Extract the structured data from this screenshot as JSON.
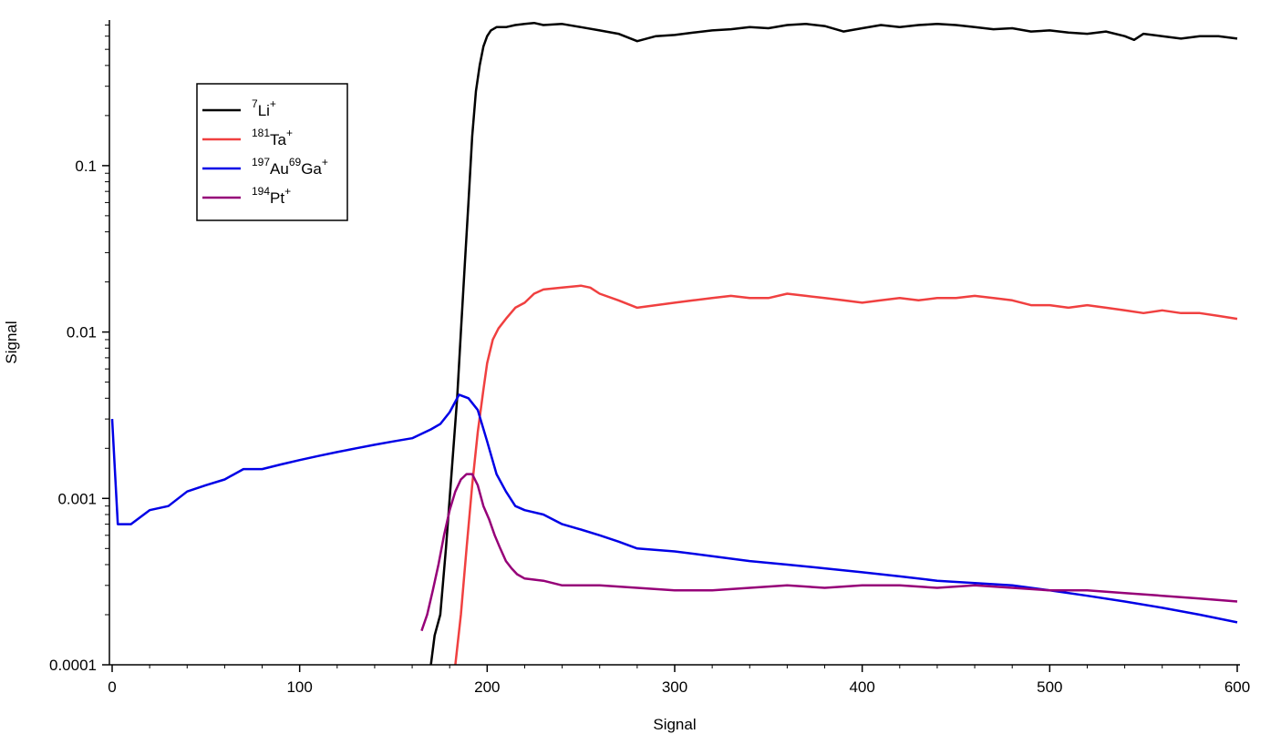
{
  "chart_data": {
    "type": "line",
    "title": "",
    "xlabel": "Signal",
    "ylabel": "Signal",
    "xlim": [
      0,
      600
    ],
    "ylim": [
      0.0001,
      0.75
    ],
    "yscale": "log",
    "grid": false,
    "legend_position": "top-left",
    "x_ticks": [
      0,
      100,
      200,
      300,
      400,
      500,
      600
    ],
    "x_tick_labels": [
      "0",
      "100",
      "200",
      "300",
      "400",
      "500",
      "600"
    ],
    "y_ticks": [
      0.0001,
      0.001,
      0.01,
      0.1
    ],
    "y_tick_labels": [
      "0.0001",
      "0.001",
      "0.01",
      "0.1"
    ],
    "series": [
      {
        "label_main": [
          "Li"
        ],
        "label_sup": [
          "7",
          "+"
        ],
        "color": "#000000",
        "x": [
          170,
          172,
          175,
          178,
          180,
          182,
          184,
          186,
          188,
          190,
          192,
          194,
          196,
          198,
          200,
          202,
          205,
          210,
          215,
          220,
          225,
          230,
          240,
          250,
          260,
          270,
          280,
          290,
          300,
          310,
          320,
          330,
          340,
          350,
          360,
          370,
          380,
          390,
          400,
          410,
          420,
          430,
          440,
          450,
          460,
          470,
          480,
          490,
          500,
          510,
          520,
          530,
          540,
          545,
          550,
          560,
          570,
          580,
          590,
          600
        ],
        "y": [
          0.0001,
          0.00015,
          0.0002,
          0.0005,
          0.001,
          0.002,
          0.004,
          0.01,
          0.025,
          0.06,
          0.15,
          0.28,
          0.4,
          0.52,
          0.6,
          0.65,
          0.68,
          0.68,
          0.7,
          0.71,
          0.72,
          0.7,
          0.71,
          0.68,
          0.65,
          0.62,
          0.56,
          0.6,
          0.61,
          0.63,
          0.65,
          0.66,
          0.68,
          0.67,
          0.7,
          0.71,
          0.69,
          0.64,
          0.67,
          0.7,
          0.68,
          0.7,
          0.71,
          0.7,
          0.68,
          0.66,
          0.67,
          0.64,
          0.65,
          0.63,
          0.62,
          0.64,
          0.6,
          0.57,
          0.62,
          0.6,
          0.58,
          0.6,
          0.6,
          0.58
        ]
      },
      {
        "label_main": [
          "Ta"
        ],
        "label_sup": [
          "181",
          "+"
        ],
        "color": "#f04040",
        "x": [
          183,
          186,
          189,
          192,
          195,
          198,
          200,
          203,
          206,
          210,
          215,
          220,
          225,
          230,
          240,
          250,
          255,
          260,
          270,
          280,
          290,
          300,
          310,
          320,
          330,
          340,
          350,
          360,
          370,
          380,
          390,
          400,
          410,
          420,
          430,
          440,
          450,
          460,
          470,
          480,
          490,
          500,
          510,
          520,
          530,
          540,
          550,
          560,
          570,
          580,
          590,
          600
        ],
        "y": [
          0.0001,
          0.0002,
          0.0005,
          0.0012,
          0.0025,
          0.0045,
          0.0065,
          0.009,
          0.0105,
          0.012,
          0.014,
          0.015,
          0.017,
          0.018,
          0.0185,
          0.019,
          0.0185,
          0.017,
          0.0155,
          0.014,
          0.0145,
          0.015,
          0.0155,
          0.016,
          0.0165,
          0.016,
          0.016,
          0.017,
          0.0165,
          0.016,
          0.0155,
          0.015,
          0.0155,
          0.016,
          0.0155,
          0.016,
          0.016,
          0.0165,
          0.016,
          0.0155,
          0.0145,
          0.0145,
          0.014,
          0.0145,
          0.014,
          0.0135,
          0.013,
          0.0135,
          0.013,
          0.013,
          0.0125,
          0.012
        ]
      },
      {
        "label_main": [
          "Au",
          "Ga"
        ],
        "label_sup": [
          "197",
          "69",
          "+"
        ],
        "color": "#0000e6",
        "x": [
          0,
          3,
          10,
          20,
          30,
          40,
          50,
          60,
          70,
          80,
          90,
          100,
          110,
          120,
          130,
          140,
          150,
          160,
          170,
          175,
          180,
          185,
          190,
          195,
          200,
          205,
          210,
          215,
          220,
          230,
          240,
          250,
          260,
          270,
          280,
          300,
          320,
          340,
          360,
          380,
          400,
          420,
          440,
          460,
          480,
          500,
          520,
          540,
          560,
          580,
          600
        ],
        "y": [
          0.003,
          0.0007,
          0.0007,
          0.00085,
          0.0009,
          0.0011,
          0.0012,
          0.0013,
          0.0015,
          0.0015,
          0.0016,
          0.0017,
          0.0018,
          0.0019,
          0.002,
          0.0021,
          0.0022,
          0.0023,
          0.0026,
          0.0028,
          0.0033,
          0.0042,
          0.004,
          0.0034,
          0.0022,
          0.0014,
          0.0011,
          0.0009,
          0.00085,
          0.0008,
          0.0007,
          0.00065,
          0.0006,
          0.00055,
          0.0005,
          0.00048,
          0.00045,
          0.00042,
          0.0004,
          0.00038,
          0.00036,
          0.00034,
          0.00032,
          0.00031,
          0.0003,
          0.00028,
          0.00026,
          0.00024,
          0.00022,
          0.0002,
          0.00018
        ]
      },
      {
        "label_main": [
          "Pt"
        ],
        "label_sup": [
          "194",
          "+"
        ],
        "color": "#960078",
        "x": [
          165,
          168,
          171,
          174,
          177,
          180,
          183,
          186,
          189,
          192,
          195,
          198,
          201,
          204,
          207,
          210,
          213,
          216,
          220,
          230,
          240,
          250,
          260,
          280,
          300,
          320,
          340,
          360,
          380,
          400,
          420,
          440,
          460,
          480,
          500,
          520,
          540,
          560,
          580,
          600
        ],
        "y": [
          0.00016,
          0.0002,
          0.00028,
          0.0004,
          0.0006,
          0.00085,
          0.0011,
          0.0013,
          0.0014,
          0.0014,
          0.0012,
          0.0009,
          0.00075,
          0.0006,
          0.0005,
          0.00042,
          0.00038,
          0.00035,
          0.00033,
          0.00032,
          0.0003,
          0.0003,
          0.0003,
          0.00029,
          0.00028,
          0.00028,
          0.00029,
          0.0003,
          0.00029,
          0.0003,
          0.0003,
          0.00029,
          0.0003,
          0.00029,
          0.00028,
          0.00028,
          0.00027,
          0.00026,
          0.00025,
          0.00024
        ]
      }
    ]
  }
}
